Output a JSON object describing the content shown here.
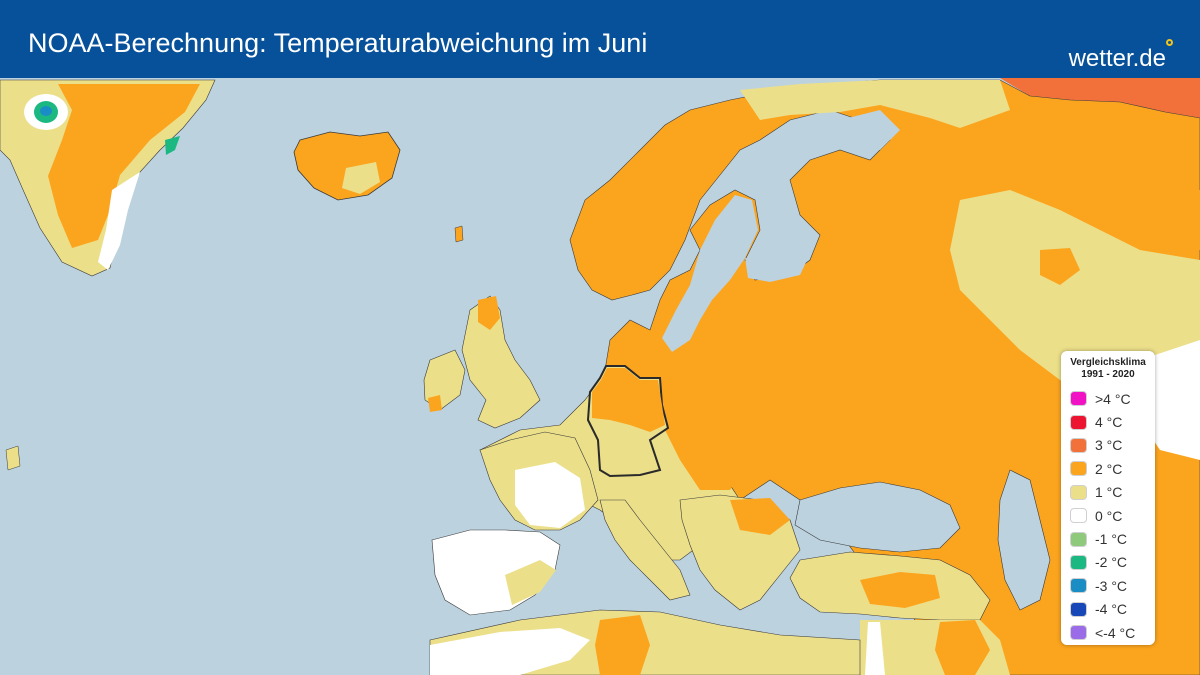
{
  "header": {
    "title": "NOAA-Berechnung: Temperaturabweichung im Juni",
    "brand": "wetter.de",
    "background_color": "#07519a"
  },
  "map": {
    "region": "Europe",
    "sea_color": "#bcd2df",
    "highlighted_country": "Germany"
  },
  "legend": {
    "title_line1": "Vergleichsklima",
    "title_line2": "1991 - 2020",
    "items": [
      {
        "label": ">4 °C",
        "color": "#f112c6"
      },
      {
        "label": "4 °C",
        "color": "#ec1430"
      },
      {
        "label": "3 °C",
        "color": "#f2703a"
      },
      {
        "label": "2 °C",
        "color": "#fba41e"
      },
      {
        "label": "1 °C",
        "color": "#ecdf8a"
      },
      {
        "label": "0 °C",
        "color": "#ffffff"
      },
      {
        "label": "-1 °C",
        "color": "#8ec97c"
      },
      {
        "label": "-2 °C",
        "color": "#1cb882"
      },
      {
        "label": "-3 °C",
        "color": "#1a8ec4"
      },
      {
        "label": "-4 °C",
        "color": "#1848b8"
      },
      {
        "label": "<-4 °C",
        "color": "#9a6ce8"
      }
    ]
  }
}
